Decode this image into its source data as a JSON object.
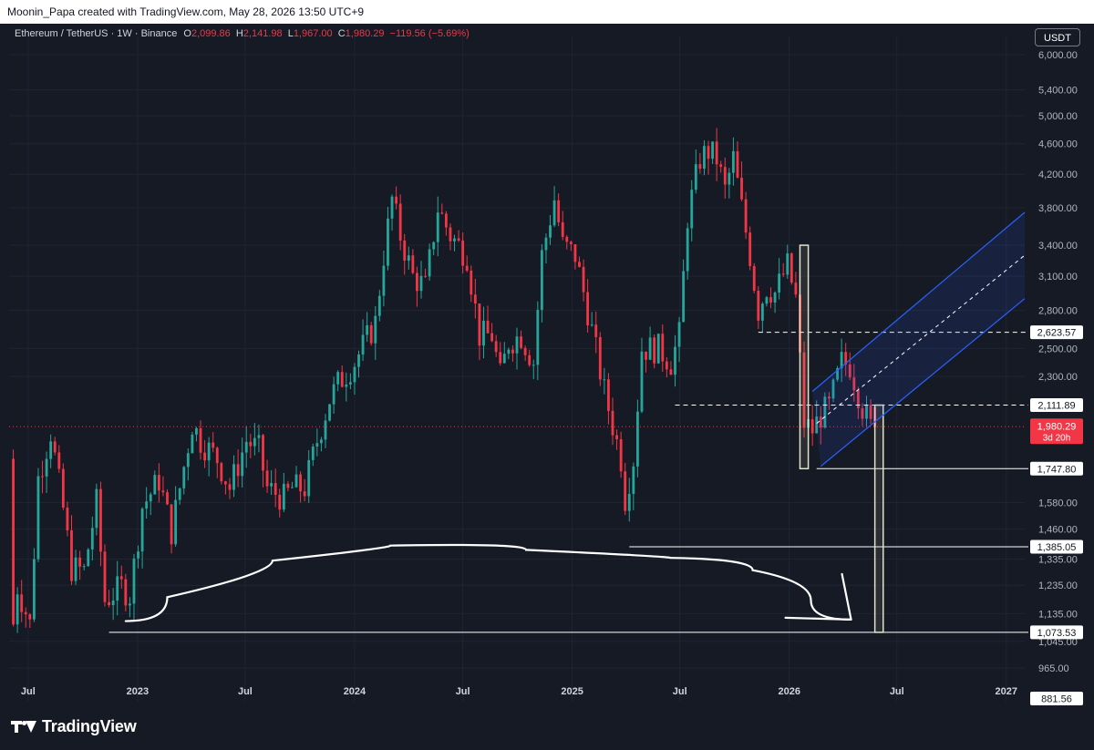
{
  "header": {
    "caption": "Moonin_Papa created with TradingView.com, May 28, 2026 13:50 UTC+9"
  },
  "legend": {
    "symbol": "Ethereum / TetherUS · 1W · Binance",
    "o_key": "O",
    "o_val": "2,099.86",
    "h_key": "H",
    "h_val": "2,141.98",
    "l_key": "L",
    "l_val": "1,967.00",
    "c_key": "C",
    "c_val": "1,980.29",
    "change": "−119.56 (−5.69%)"
  },
  "currency_button": "USDT",
  "brand": {
    "logo_text": "TradingView",
    "logo_icon": "tradingview-logo-icon"
  },
  "colors": {
    "background": "#161a25",
    "up": "#26a69a",
    "down": "#f23645",
    "channel": "#2962ff",
    "level_line": "#ffffff"
  },
  "chart_data": {
    "type": "candlestick",
    "title": "Ethereum / TetherUS · 1W · Binance",
    "y_scale": "log",
    "ylim": [
      820,
      6200
    ],
    "x_range": [
      "2022-05-30",
      "2027-02-01"
    ],
    "grid": true,
    "y_ticks": [
      "6,000.00",
      "5,400.00",
      "5,000.00",
      "4,600.00",
      "4,200.00",
      "3,800.00",
      "3,400.00",
      "3,100.00",
      "2,800.00",
      "2,500.00",
      "2,300.00",
      "1,580.00",
      "1,460.00",
      "1,335.00",
      "1,235.00",
      "1,135.00",
      "1,045.00",
      "965.00"
    ],
    "y_tick_values": [
      6000,
      5400,
      5000,
      4600,
      4200,
      3800,
      3400,
      3100,
      2800,
      2500,
      2300,
      1580,
      1460,
      1335,
      1235,
      1135,
      1045,
      965
    ],
    "x_ticks": [
      {
        "label": "Jul",
        "date": "2022-07-01"
      },
      {
        "label": "2023",
        "date": "2023-01-01"
      },
      {
        "label": "Jul",
        "date": "2023-07-01"
      },
      {
        "label": "2024",
        "date": "2024-01-01"
      },
      {
        "label": "Jul",
        "date": "2024-07-01"
      },
      {
        "label": "2025",
        "date": "2025-01-01"
      },
      {
        "label": "Jul",
        "date": "2025-07-01"
      },
      {
        "label": "2026",
        "date": "2026-01-01"
      },
      {
        "label": "Jul",
        "date": "2026-07-01"
      },
      {
        "label": "2027",
        "date": "2027-01-01"
      }
    ],
    "last_price": {
      "value": 1980.29,
      "label": "1,980.29",
      "countdown": "3d 20h"
    },
    "price_path": [
      [
        "2022-06-06",
        1800
      ],
      [
        "2022-06-13",
        1100
      ],
      [
        "2022-06-20",
        1230
      ],
      [
        "2022-07-11",
        1100
      ],
      [
        "2022-07-25",
        1700
      ],
      [
        "2022-08-15",
        1950
      ],
      [
        "2022-09-05",
        1550
      ],
      [
        "2022-09-19",
        1300
      ],
      [
        "2022-10-10",
        1290
      ],
      [
        "2022-10-31",
        1580
      ],
      [
        "2022-11-14",
        1180
      ],
      [
        "2022-12-12",
        1230
      ],
      [
        "2022-12-26",
        1200
      ],
      [
        "2023-01-16",
        1560
      ],
      [
        "2023-02-13",
        1690
      ],
      [
        "2023-03-06",
        1450
      ],
      [
        "2023-04-10",
        2000
      ],
      [
        "2023-04-24",
        1900
      ],
      [
        "2023-05-22",
        1800
      ],
      [
        "2023-06-12",
        1650
      ],
      [
        "2023-07-10",
        1900
      ],
      [
        "2023-07-31",
        1850
      ],
      [
        "2023-08-14",
        1650
      ],
      [
        "2023-09-11",
        1600
      ],
      [
        "2023-09-25",
        1650
      ],
      [
        "2023-10-16",
        1650
      ],
      [
        "2023-11-06",
        1900
      ],
      [
        "2023-11-27",
        2150
      ],
      [
        "2023-12-11",
        2250
      ],
      [
        "2024-01-08",
        2400
      ],
      [
        "2024-02-12",
        2700
      ],
      [
        "2024-02-26",
        3300
      ],
      [
        "2024-03-11",
        3900
      ],
      [
        "2024-03-25",
        3500
      ],
      [
        "2024-04-15",
        3100
      ],
      [
        "2024-05-06",
        3000
      ],
      [
        "2024-05-27",
        3800
      ],
      [
        "2024-06-17",
        3500
      ],
      [
        "2024-07-15",
        3300
      ],
      [
        "2024-08-05",
        2600
      ],
      [
        "2024-08-26",
        2600
      ],
      [
        "2024-09-09",
        2300
      ],
      [
        "2024-09-23",
        2550
      ],
      [
        "2024-10-14",
        2600
      ],
      [
        "2024-11-04",
        2400
      ],
      [
        "2024-11-18",
        3300
      ],
      [
        "2024-12-09",
        3900
      ],
      [
        "2024-12-23",
        3400
      ],
      [
        "2025-01-13",
        3300
      ],
      [
        "2025-02-03",
        2800
      ],
      [
        "2025-03-03",
        2200
      ],
      [
        "2025-03-31",
        1800
      ],
      [
        "2025-04-07",
        1600
      ],
      [
        "2025-04-21",
        1800
      ],
      [
        "2025-05-05",
        2500
      ],
      [
        "2025-06-02",
        2500
      ],
      [
        "2025-06-23",
        2400
      ],
      [
        "2025-07-07",
        2600
      ],
      [
        "2025-07-21",
        3700
      ],
      [
        "2025-08-11",
        4400
      ],
      [
        "2025-08-25",
        4500
      ],
      [
        "2025-09-08",
        4400
      ],
      [
        "2025-09-22",
        4000
      ],
      [
        "2025-10-06",
        4400
      ],
      [
        "2025-10-20",
        3800
      ],
      [
        "2025-11-03",
        3300
      ],
      [
        "2025-11-17",
        2800
      ],
      [
        "2025-12-01",
        3000
      ],
      [
        "2025-12-15",
        2950
      ],
      [
        "2026-01-05",
        3200
      ],
      [
        "2026-01-19",
        2900
      ],
      [
        "2026-02-02",
        2000
      ],
      [
        "2026-02-16",
        1960
      ],
      [
        "2026-03-02",
        2050
      ],
      [
        "2026-03-16",
        2100
      ],
      [
        "2026-04-06",
        2400
      ],
      [
        "2026-04-20",
        2380
      ],
      [
        "2026-05-11",
        2100
      ],
      [
        "2026-05-25",
        1980
      ]
    ],
    "key_levels": [
      {
        "label": "2,623.57",
        "value": 2623.57,
        "style": "dashed",
        "from": "2025-11-10"
      },
      {
        "label": "2,111.89",
        "value": 2111.89,
        "style": "dashed",
        "from": "2025-06-23"
      },
      {
        "label": "1,747.80",
        "value": 1747.8,
        "style": "solid",
        "from": "2026-02-16"
      },
      {
        "label": "1,385.05",
        "value": 1385.05,
        "style": "solid",
        "from": "2025-04-07"
      },
      {
        "label": "1,073.53",
        "value": 1073.53,
        "style": "solid",
        "from": "2022-11-14"
      },
      {
        "label": "881.56",
        "value": 881.56,
        "style": "solid",
        "from": null
      }
    ],
    "annotations": {
      "boxes": [
        {
          "x0": "2026-01-19",
          "x1": "2026-02-02",
          "y_top": 3400,
          "y_bottom": 1747.8
        },
        {
          "x0": "2026-05-25",
          "x1": "2026-06-08",
          "y_top": 2111.89,
          "y_bottom": 1073.53
        }
      ],
      "channel": {
        "upper": [
          [
            "2026-02-09",
            2200
          ],
          [
            "2027-02-01",
            3750
          ]
        ],
        "middle": [
          [
            "2026-02-16",
            2000
          ],
          [
            "2027-02-01",
            3300
          ]
        ],
        "lower": [
          [
            "2026-02-23",
            1760
          ],
          [
            "2027-02-01",
            2900
          ]
        ]
      },
      "curve": [
        [
          "2022-12-12",
          1110
        ],
        [
          "2023-05-01",
          1280
        ],
        [
          "2023-12-01",
          1380
        ],
        [
          "2024-06-01",
          1400
        ],
        [
          "2025-03-01",
          1345
        ],
        [
          "2025-10-01",
          1335
        ],
        [
          "2025-12-01",
          1250
        ],
        [
          "2026-04-15",
          1115
        ]
      ],
      "arrow_tip": [
        "2026-04-15",
        1115
      ]
    }
  }
}
